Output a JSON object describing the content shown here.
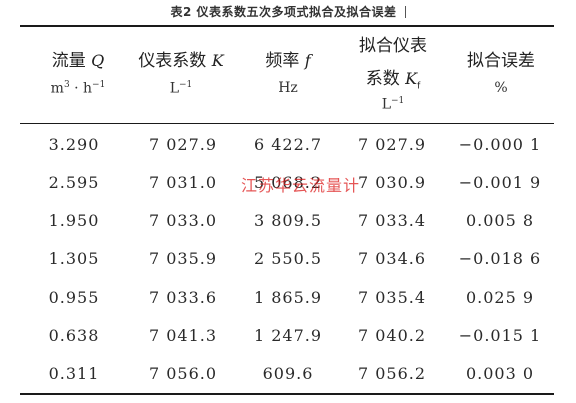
{
  "caption": "表2 仪表系数五次多项式拟合及拟合误差",
  "headers": [
    {
      "title": "流量",
      "symbol": "Q",
      "unit_base": "m",
      "unit_sup1": "3",
      "unit_mid": " · h",
      "unit_sup2": "−1"
    },
    {
      "title": "仪表系数",
      "symbol": "K",
      "unit_base": "L",
      "unit_sup": "−1"
    },
    {
      "title": "频率",
      "symbol": "f",
      "unit": "Hz"
    },
    {
      "title": "拟合仪表",
      "title2": "系数",
      "symbol": "K",
      "symbol_sub": "f",
      "unit_base": "L",
      "unit_sup": "−1"
    },
    {
      "title": "拟合误差",
      "unit": "%"
    }
  ],
  "rows": [
    [
      "3.290",
      "7 027.9",
      "6 422.7",
      "7 027.9",
      "−0.000 1"
    ],
    [
      "2.595",
      "7 031.0",
      "5 068.2",
      "7 030.9",
      "−0.001 9"
    ],
    [
      "1.950",
      "7 033.0",
      "3 809.5",
      "7 033.4",
      "0.005 8"
    ],
    [
      "1.305",
      "7 035.9",
      "2 550.5",
      "7 034.6",
      "−0.018 6"
    ],
    [
      "0.955",
      "7 033.6",
      "1 865.9",
      "7 035.4",
      "0.025 9"
    ],
    [
      "0.638",
      "7 041.3",
      "1 247.9",
      "7 040.2",
      "−0.015 1"
    ],
    [
      "0.311",
      "7 056.0",
      "609.6",
      "7 056.2",
      "0.003 0"
    ]
  ],
  "watermark": "江苏华云流量计",
  "colors": {
    "text": "#222222",
    "rule": "#1a1a1a",
    "watermark": "#dc1e1e"
  }
}
